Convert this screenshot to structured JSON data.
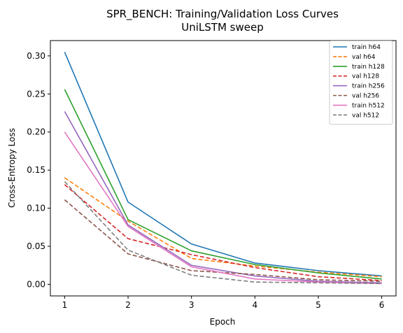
{
  "chart_data": {
    "type": "line",
    "title": "SPR_BENCH: Training/Validation Loss Curves",
    "subtitle": "UniLSTM sweep",
    "xlabel": "Epoch",
    "ylabel": "Cross-Entropy Loss",
    "x": [
      1,
      2,
      3,
      4,
      5,
      6
    ],
    "xlim": [
      0.775,
      6.225
    ],
    "ylim": [
      -0.0152,
      0.3201
    ],
    "xticks": [
      1,
      2,
      3,
      4,
      5,
      6
    ],
    "yticks": [
      0.0,
      0.05,
      0.1,
      0.15,
      0.2,
      0.25,
      0.3
    ],
    "ytick_labels": [
      "0.00",
      "0.05",
      "0.10",
      "0.15",
      "0.20",
      "0.25",
      "0.30"
    ],
    "grid": false,
    "legend_position": "top-right",
    "series": [
      {
        "name": "train h64",
        "color": "#1f77b4",
        "dashed": false,
        "values": [
          0.305,
          0.108,
          0.053,
          0.028,
          0.018,
          0.011
        ]
      },
      {
        "name": "val h64",
        "color": "#ff7f0e",
        "dashed": true,
        "values": [
          0.14,
          0.083,
          0.034,
          0.024,
          0.016,
          0.01
        ]
      },
      {
        "name": "train h128",
        "color": "#2ca02c",
        "dashed": false,
        "values": [
          0.256,
          0.085,
          0.044,
          0.026,
          0.015,
          0.007
        ]
      },
      {
        "name": "val h128",
        "color": "#d62728",
        "dashed": true,
        "values": [
          0.131,
          0.06,
          0.039,
          0.022,
          0.01,
          0.005
        ]
      },
      {
        "name": "train h256",
        "color": "#9467bd",
        "dashed": false,
        "values": [
          0.227,
          0.078,
          0.025,
          0.011,
          0.004,
          0.002
        ]
      },
      {
        "name": "val h256",
        "color": "#8c564b",
        "dashed": true,
        "values": [
          0.111,
          0.04,
          0.018,
          0.013,
          0.006,
          0.004
        ]
      },
      {
        "name": "train h512",
        "color": "#e377c2",
        "dashed": false,
        "values": [
          0.2,
          0.076,
          0.023,
          0.007,
          0.003,
          0.001
        ]
      },
      {
        "name": "val h512",
        "color": "#7f7f7f",
        "dashed": true,
        "values": [
          0.135,
          0.045,
          0.012,
          0.003,
          0.002,
          0.001
        ]
      }
    ]
  }
}
